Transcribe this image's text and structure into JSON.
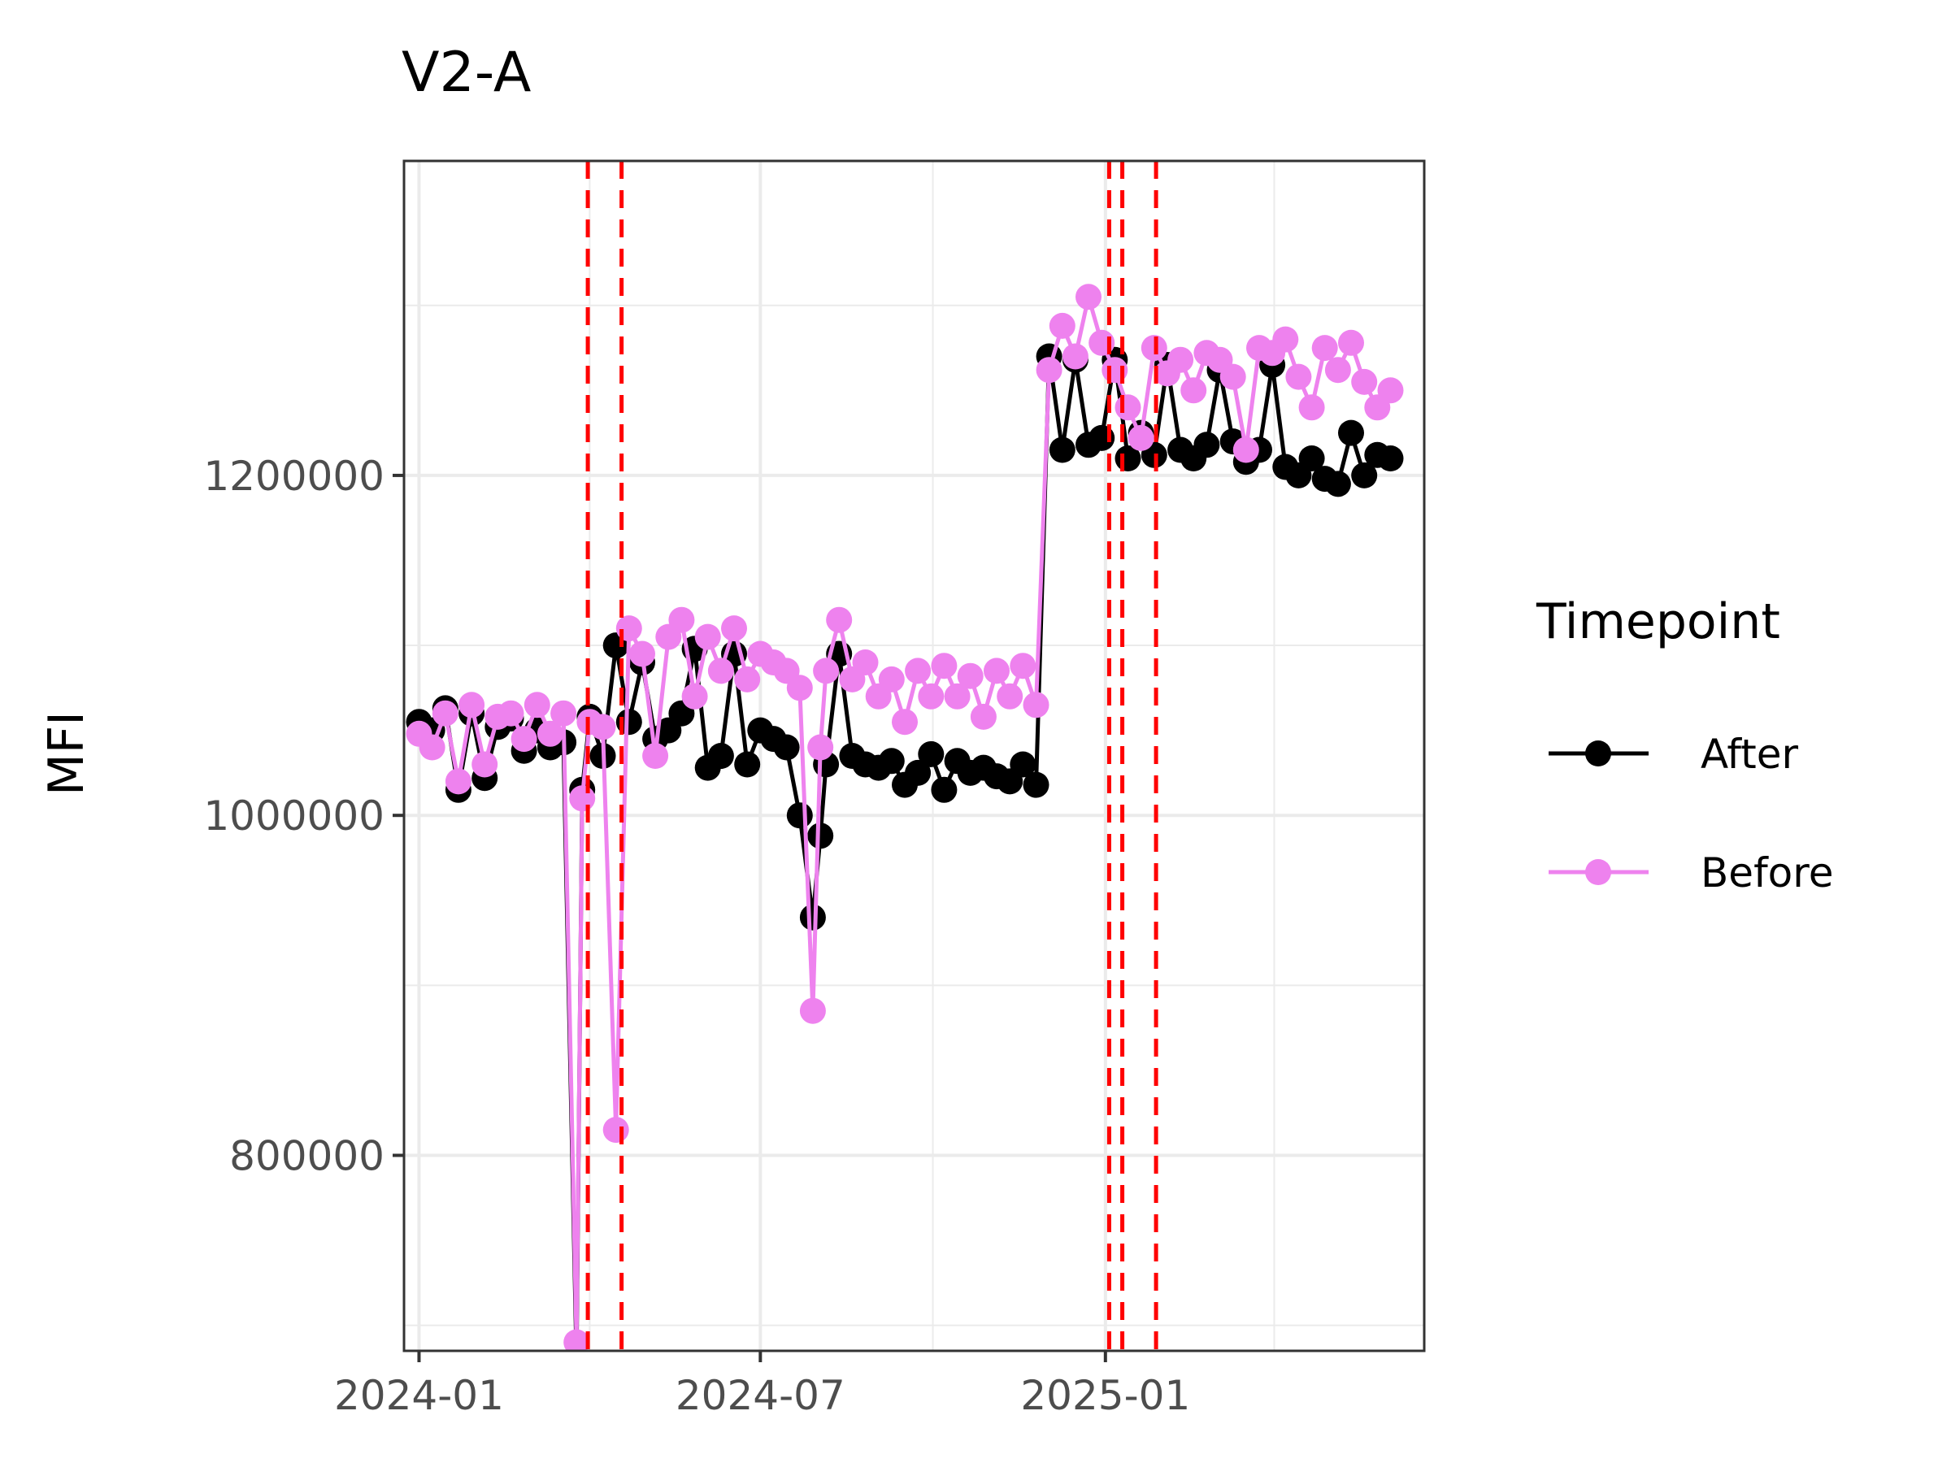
{
  "chart_data": {
    "type": "line",
    "title": "V2-A",
    "xlabel": "",
    "ylabel": "MFI",
    "x_ticks": [
      "2024-01",
      "2024-07",
      "2025-01"
    ],
    "y_ticks": [
      "800000",
      "1000000",
      "1200000"
    ],
    "xlim": [
      "2023-12-24",
      "2025-06-20"
    ],
    "ylim": [
      685000,
      1385000
    ],
    "grid": true,
    "legend": {
      "title": "Timepoint",
      "position": "right"
    },
    "vlines": [
      "2024-03-31",
      "2024-04-18",
      "2025-01-03",
      "2025-01-10",
      "2025-01-28"
    ],
    "vline_color": "#ff0000",
    "series": [
      {
        "name": "After",
        "color": "#000000",
        "x": [
          "2024-01-01",
          "2024-01-08",
          "2024-01-15",
          "2024-01-22",
          "2024-01-29",
          "2024-02-05",
          "2024-02-12",
          "2024-02-19",
          "2024-02-26",
          "2024-03-04",
          "2024-03-11",
          "2024-03-18",
          "2024-03-25",
          "2024-03-28",
          "2024-04-01",
          "2024-04-08",
          "2024-04-15",
          "2024-04-22",
          "2024-04-29",
          "2024-05-06",
          "2024-05-13",
          "2024-05-20",
          "2024-05-27",
          "2024-06-03",
          "2024-06-10",
          "2024-06-17",
          "2024-06-24",
          "2024-07-01",
          "2024-07-08",
          "2024-07-15",
          "2024-07-22",
          "2024-07-29",
          "2024-08-02",
          "2024-08-05",
          "2024-08-12",
          "2024-08-19",
          "2024-08-26",
          "2024-09-02",
          "2024-09-09",
          "2024-09-16",
          "2024-09-23",
          "2024-09-30",
          "2024-10-07",
          "2024-10-14",
          "2024-10-21",
          "2024-10-28",
          "2024-11-04",
          "2024-11-11",
          "2024-11-18",
          "2024-11-25",
          "2024-12-02",
          "2024-12-09",
          "2024-12-16",
          "2024-12-23",
          "2024-12-30",
          "2025-01-06",
          "2025-01-13",
          "2025-01-20",
          "2025-01-27",
          "2025-02-03",
          "2025-02-10",
          "2025-02-17",
          "2025-02-24",
          "2025-03-03",
          "2025-03-10",
          "2025-03-17",
          "2025-03-24",
          "2025-03-31",
          "2025-04-07",
          "2025-04-14",
          "2025-04-21",
          "2025-04-28",
          "2025-05-05",
          "2025-05-12",
          "2025-05-19",
          "2025-05-26",
          "2025-06-02"
        ],
        "values": [
          1055000,
          1050000,
          1063000,
          1015000,
          1060000,
          1022000,
          1052000,
          1057000,
          1038000,
          1050000,
          1040000,
          1043000,
          680000,
          1015000,
          1058000,
          1035000,
          1100000,
          1055000,
          1090000,
          1045000,
          1050000,
          1060000,
          1098000,
          1028000,
          1035000,
          1095000,
          1030000,
          1050000,
          1045000,
          1040000,
          1000000,
          940000,
          988000,
          1030000,
          1095000,
          1035000,
          1030000,
          1028000,
          1032000,
          1018000,
          1025000,
          1036000,
          1015000,
          1032000,
          1025000,
          1028000,
          1023000,
          1020000,
          1030000,
          1018000,
          1270000,
          1215000,
          1268000,
          1218000,
          1222000,
          1268000,
          1210000,
          1225000,
          1212000,
          1265000,
          1215000,
          1210000,
          1218000,
          1262000,
          1220000,
          1208000,
          1215000,
          1265000,
          1205000,
          1200000,
          1210000,
          1198000,
          1195000,
          1225000,
          1200000,
          1212000,
          1210000
        ]
      },
      {
        "name": "Before",
        "color": "#ee82ee",
        "x": [
          "2024-01-01",
          "2024-01-08",
          "2024-01-15",
          "2024-01-22",
          "2024-01-29",
          "2024-02-05",
          "2024-02-12",
          "2024-02-19",
          "2024-02-26",
          "2024-03-04",
          "2024-03-11",
          "2024-03-18",
          "2024-03-25",
          "2024-03-28",
          "2024-04-01",
          "2024-04-08",
          "2024-04-15",
          "2024-04-22",
          "2024-04-29",
          "2024-05-06",
          "2024-05-13",
          "2024-05-20",
          "2024-05-27",
          "2024-06-03",
          "2024-06-10",
          "2024-06-17",
          "2024-06-24",
          "2024-07-01",
          "2024-07-08",
          "2024-07-15",
          "2024-07-22",
          "2024-07-29",
          "2024-08-02",
          "2024-08-05",
          "2024-08-12",
          "2024-08-19",
          "2024-08-26",
          "2024-09-02",
          "2024-09-09",
          "2024-09-16",
          "2024-09-23",
          "2024-09-30",
          "2024-10-07",
          "2024-10-14",
          "2024-10-21",
          "2024-10-28",
          "2024-11-04",
          "2024-11-11",
          "2024-11-18",
          "2024-11-25",
          "2024-12-02",
          "2024-12-09",
          "2024-12-16",
          "2024-12-23",
          "2024-12-30",
          "2025-01-06",
          "2025-01-13",
          "2025-01-20",
          "2025-01-27",
          "2025-02-03",
          "2025-02-10",
          "2025-02-17",
          "2025-02-24",
          "2025-03-03",
          "2025-03-10",
          "2025-03-17",
          "2025-03-24",
          "2025-03-31",
          "2025-04-07",
          "2025-04-14",
          "2025-04-21",
          "2025-04-28",
          "2025-05-05",
          "2025-05-12",
          "2025-05-19",
          "2025-05-26",
          "2025-06-02"
        ],
        "values": [
          1048000,
          1040000,
          1060000,
          1020000,
          1065000,
          1030000,
          1058000,
          1060000,
          1045000,
          1065000,
          1048000,
          1060000,
          690000,
          1010000,
          1055000,
          1052000,
          815000,
          1110000,
          1095000,
          1035000,
          1105000,
          1115000,
          1070000,
          1105000,
          1085000,
          1110000,
          1080000,
          1095000,
          1090000,
          1085000,
          1075000,
          885000,
          1040000,
          1085000,
          1115000,
          1080000,
          1090000,
          1070000,
          1080000,
          1055000,
          1085000,
          1070000,
          1088000,
          1070000,
          1082000,
          1058000,
          1085000,
          1070000,
          1088000,
          1065000,
          1262000,
          1288000,
          1270000,
          1305000,
          1278000,
          1262000,
          1240000,
          1222000,
          1275000,
          1260000,
          1268000,
          1250000,
          1272000,
          1268000,
          1258000,
          1215000,
          1275000,
          1272000,
          1280000,
          1258000,
          1240000,
          1275000,
          1262000,
          1278000,
          1255000,
          1240000,
          1250000
        ]
      }
    ]
  }
}
